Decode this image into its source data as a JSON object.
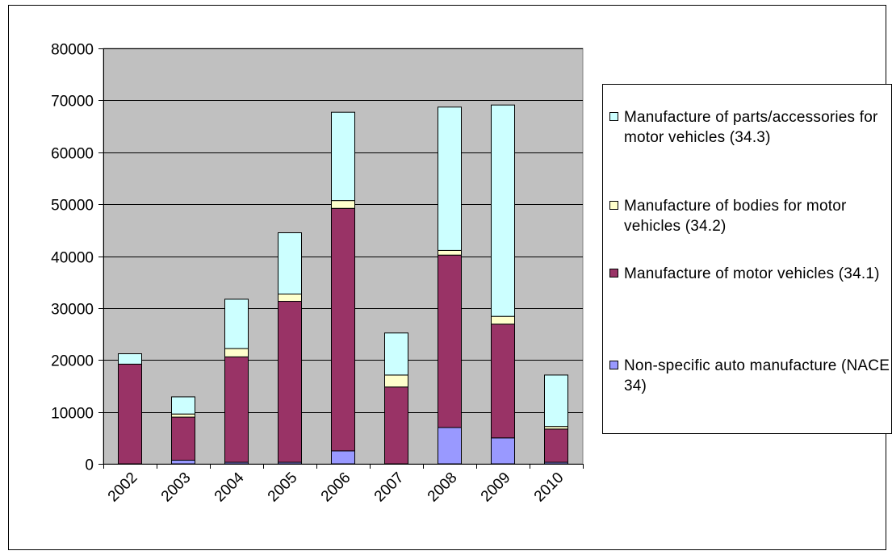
{
  "chart_data": {
    "type": "bar",
    "stacked": true,
    "title": "",
    "xlabel": "",
    "ylabel": "",
    "categories": [
      "2002",
      "2003",
      "2004",
      "2005",
      "2006",
      "2007",
      "2008",
      "2009",
      "2010"
    ],
    "ylim": [
      0,
      80000
    ],
    "yticks": [
      0,
      10000,
      20000,
      30000,
      40000,
      50000,
      60000,
      70000,
      80000
    ],
    "grid": true,
    "plot_background": "#c0c0c0",
    "legend_position": "right",
    "series": [
      {
        "name": "Non-specific auto manufacture (NACE 34)",
        "color": "#9999ff",
        "values": [
          0,
          700,
          300,
          300,
          2500,
          0,
          7000,
          5000,
          300
        ]
      },
      {
        "name": "Manufacture of motor vehicles (34.1)",
        "color": "#993366",
        "values": [
          19200,
          8300,
          20300,
          31000,
          46700,
          14800,
          33200,
          21900,
          6400
        ]
      },
      {
        "name": "Manufacture of bodies for motor vehicles (34.2)",
        "color": "#ffffcc",
        "values": [
          0,
          600,
          1600,
          1400,
          1500,
          2300,
          900,
          1500,
          500
        ]
      },
      {
        "name": "Manufacture of parts/accessories for motor vehicles (34.3)",
        "color": "#ccffff",
        "values": [
          2000,
          3300,
          9500,
          11800,
          17000,
          8100,
          27600,
          40700,
          9900
        ]
      }
    ]
  },
  "legend": {
    "items": [
      {
        "label": "Manufacture of parts/accessories for motor vehicles (34.3)",
        "color": "#ccffff"
      },
      {
        "label": "Manufacture of bodies for motor vehicles (34.2)",
        "color": "#ffffcc"
      },
      {
        "label": "Manufacture of motor vehicles (34.1)",
        "color": "#993366"
      },
      {
        "label": "Non-specific auto manufacture (NACE 34)",
        "color": "#9999ff"
      }
    ]
  }
}
